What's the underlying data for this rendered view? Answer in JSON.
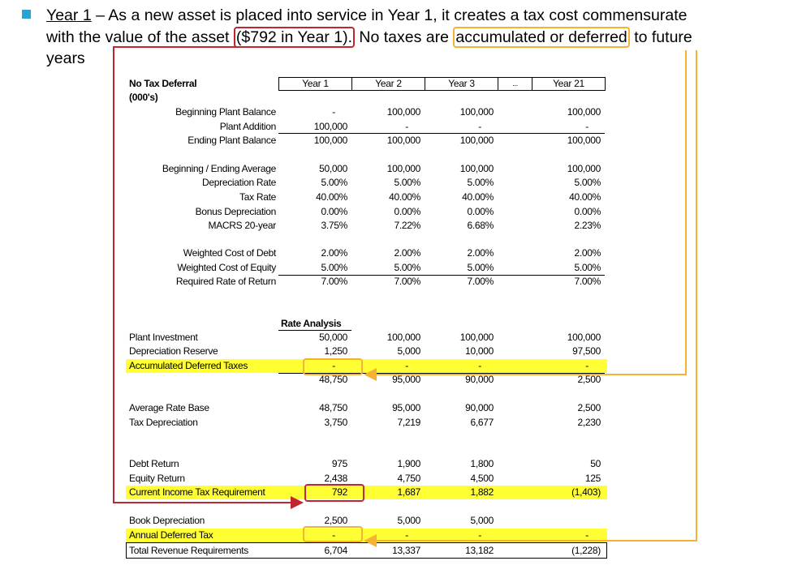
{
  "bullet": {
    "segments": [
      "Year 1",
      " – As a new asset is placed into service in Year 1, it creates a tax cost commensurate",
      "with the value of the asset",
      "($792 in Year 1).",
      "No taxes are",
      "accumulated or deferred",
      "to future",
      "years"
    ]
  },
  "table": {
    "title": "No Tax Deferral",
    "units": "(000's)",
    "columns": [
      "Year 1",
      "Year 2",
      "Year 3",
      "...",
      "Year 21"
    ],
    "assumptions": [
      {
        "label": "Beginning Plant Balance",
        "cells": [
          "-",
          "100,000",
          "100,000",
          "100,000"
        ]
      },
      {
        "label": "Plant Addition",
        "cells": [
          "100,000",
          "-",
          "-",
          "-"
        ]
      },
      {
        "label": "Ending Plant Balance",
        "cells": [
          "100,000",
          "100,000",
          "100,000",
          "100,000"
        ]
      },
      {
        "label": "Beginning / Ending Average",
        "cells": [
          "50,000",
          "100,000",
          "100,000",
          "100,000"
        ]
      },
      {
        "label": "Depreciation Rate",
        "cells": [
          "5.00%",
          "5.00%",
          "5.00%",
          "5.00%"
        ]
      },
      {
        "label": "Tax Rate",
        "cells": [
          "40.00%",
          "40.00%",
          "40.00%",
          "40.00%"
        ]
      },
      {
        "label": "Bonus Depreciation",
        "cells": [
          "0.00%",
          "0.00%",
          "0.00%",
          "0.00%"
        ]
      },
      {
        "label": "MACRS 20-year",
        "cells": [
          "3.75%",
          "7.22%",
          "6.68%",
          "2.23%"
        ]
      },
      {
        "label": "Weighted Cost of Debt",
        "cells": [
          "2.00%",
          "2.00%",
          "2.00%",
          "2.00%"
        ]
      },
      {
        "label": "Weighted Cost of Equity",
        "cells": [
          "5.00%",
          "5.00%",
          "5.00%",
          "5.00%"
        ]
      },
      {
        "label": "Required Rate of Return",
        "cells": [
          "7.00%",
          "7.00%",
          "7.00%",
          "7.00%"
        ]
      }
    ],
    "rate_analysis": {
      "title": "Rate Analysis",
      "rows": [
        {
          "label": "Plant Investment",
          "cells": [
            "50,000",
            "100,000",
            "100,000",
            "100,000"
          ]
        },
        {
          "label": "Depreciation Reserve",
          "cells": [
            "1,250",
            "5,000",
            "10,000",
            "97,500"
          ]
        },
        {
          "label": "Accumulated Deferred Taxes",
          "cells": [
            "-",
            "-",
            "-",
            "-"
          ],
          "highlight": true
        },
        {
          "label": null,
          "cells": [
            "48,750",
            "95,000",
            "90,000",
            "2,500"
          ]
        },
        {
          "label": "Average Rate Base",
          "cells": [
            "48,750",
            "95,000",
            "90,000",
            "2,500"
          ]
        },
        {
          "label": "Tax Depreciation",
          "cells": [
            "3,750",
            "7,219",
            "6,677",
            "2,230"
          ]
        },
        {
          "label": "Debt Return",
          "cells": [
            "975",
            "1,900",
            "1,800",
            "50"
          ]
        },
        {
          "label": "Equity Return",
          "cells": [
            "2,438",
            "4,750",
            "4,500",
            "125"
          ]
        },
        {
          "label": "Current Income Tax Requirement",
          "cells": [
            "792",
            "1,687",
            "1,882",
            "(1,403)"
          ],
          "highlight": true
        },
        {
          "label": "Book Depreciation",
          "cells": [
            "2,500",
            "5,000",
            "5,000",
            null
          ]
        },
        {
          "label": "Annual Deferred Tax",
          "cells": [
            "-",
            "-",
            "-",
            "-"
          ],
          "highlight": true
        },
        {
          "label": "Total Revenue Requirements",
          "cells": [
            "6,704",
            "13,337",
            "13,182",
            "(1,228)"
          ]
        }
      ]
    }
  }
}
